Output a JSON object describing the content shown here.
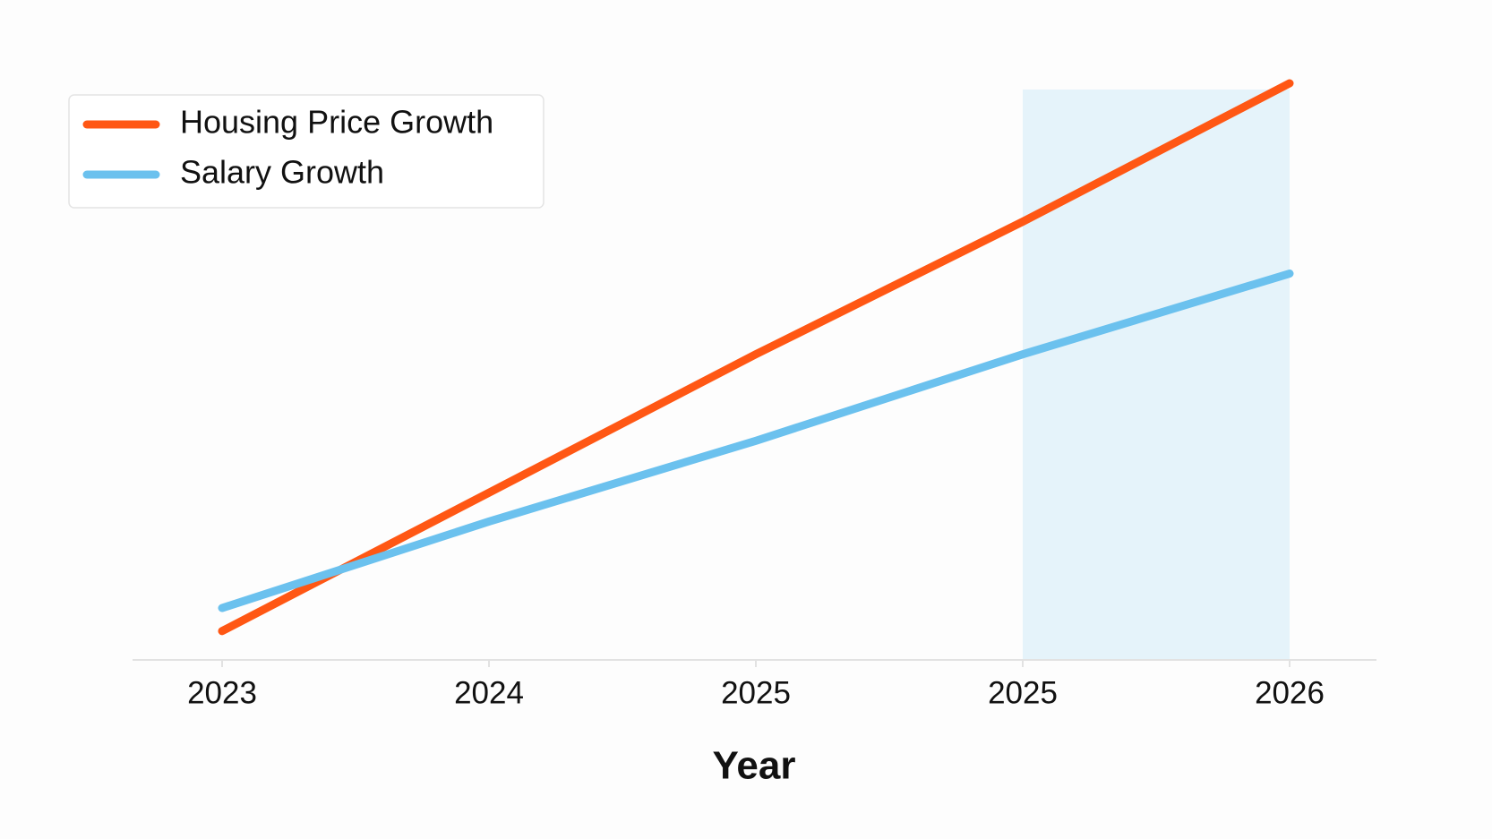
{
  "chart_data": {
    "type": "line",
    "x_label": "Year",
    "categories": [
      "2023",
      "2024",
      "2025",
      "2025",
      "2026"
    ],
    "series": [
      {
        "name": "Housing Price Growth",
        "color": "#ff5714",
        "values": [
          5,
          29,
          53,
          76,
          100
        ]
      },
      {
        "name": "Salary Growth",
        "color": "#6bc1ee",
        "values": [
          9,
          24,
          38,
          53,
          67
        ]
      }
    ],
    "ylim": [
      0,
      100
    ]
  }
}
